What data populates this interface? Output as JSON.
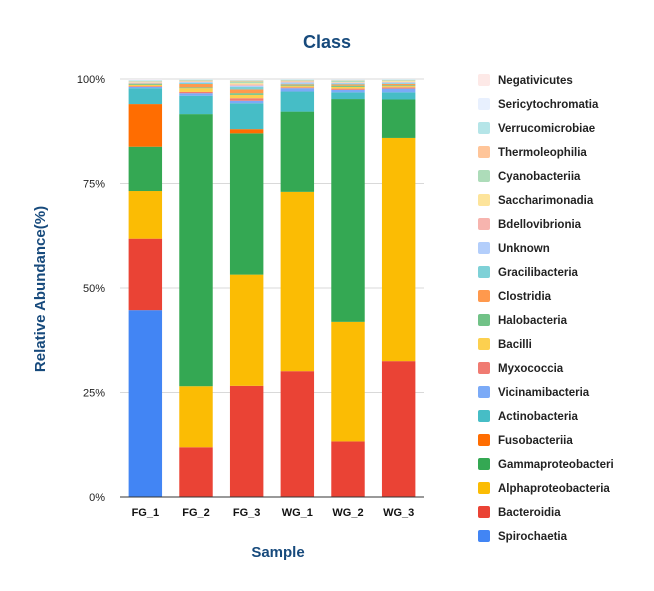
{
  "chart_data": {
    "type": "bar",
    "stacked": true,
    "title": "Class",
    "xlabel": "Sample",
    "ylabel": "Relative Abundance(%)",
    "ylim": [
      0,
      100
    ],
    "yticks": [
      0,
      25,
      50,
      75,
      100
    ],
    "ytick_labels": [
      "0%",
      "25%",
      "50%",
      "75%",
      "100%"
    ],
    "grid": true,
    "legend_position": "right",
    "categories": [
      "FG_1",
      "FG_2",
      "FG_3",
      "WG_1",
      "WG_2",
      "WG_3"
    ],
    "series": [
      {
        "name": "Spirochaetia",
        "color": "#4285f4",
        "values": [
          44.7,
          0,
          0,
          0,
          0,
          0
        ]
      },
      {
        "name": "Bacteroidia",
        "color": "#ea4335",
        "values": [
          17.1,
          11.9,
          26.6,
          30.1,
          13.3,
          32.5
        ]
      },
      {
        "name": "Alphaproteobacteria",
        "color": "#fbbc04",
        "values": [
          11.4,
          14.6,
          26.6,
          42.9,
          28.6,
          53.4
        ]
      },
      {
        "name": "Gammaproteobacteri",
        "color": "#34a853",
        "values": [
          10.6,
          65.1,
          33.8,
          19.2,
          53.3,
          9.2
        ]
      },
      {
        "name": "Fusobacteriia",
        "color": "#ff6d01",
        "values": [
          10.2,
          0,
          1.0,
          0,
          0,
          0
        ]
      },
      {
        "name": "Actinobacteria",
        "color": "#46bdc6",
        "values": [
          3.8,
          4.4,
          6.2,
          4.8,
          1.6,
          1.7
        ]
      },
      {
        "name": "Vicinamibacteria",
        "color": "#7baaf7",
        "values": [
          0.3,
          0.6,
          0.6,
          0.8,
          0.6,
          0.9
        ]
      },
      {
        "name": "Myxococcia",
        "color": "#f07b72",
        "values": [
          0.2,
          0.3,
          0.6,
          0.2,
          0.3,
          0.3
        ]
      },
      {
        "name": "Bacilli",
        "color": "#fcd04f",
        "values": [
          0.3,
          0.9,
          0.8,
          0.3,
          0.4,
          0.3
        ]
      },
      {
        "name": "Halobacteria",
        "color": "#71c287",
        "values": [
          0.2,
          0.2,
          0.4,
          0.2,
          0.3,
          0.2
        ]
      },
      {
        "name": "Clostridia",
        "color": "#ff994d",
        "values": [
          0.1,
          0.8,
          0.9,
          0.2,
          0.3,
          0.3
        ]
      },
      {
        "name": "Gracilibacteria",
        "color": "#7ed1d7",
        "values": [
          0.1,
          0.3,
          0.6,
          0.2,
          0.2,
          0.2
        ]
      },
      {
        "name": "Unknown",
        "color": "#b3cefb",
        "values": [
          0.1,
          0.2,
          0.3,
          0.3,
          0.2,
          0.2
        ]
      },
      {
        "name": "Bdellovibrionia",
        "color": "#f7b4ae",
        "values": [
          0.1,
          0.1,
          0.3,
          0.2,
          0.1,
          0.1
        ]
      },
      {
        "name": "Saccharimonadia",
        "color": "#fde49b",
        "values": [
          0.1,
          0.1,
          0.3,
          0.1,
          0.1,
          0.2
        ]
      },
      {
        "name": "Cyanobacteriia",
        "color": "#addcb9",
        "values": [
          0.1,
          0.2,
          0.4,
          0.2,
          0.3,
          0.2
        ]
      },
      {
        "name": "Thermoleophilia",
        "color": "#ffc599",
        "values": [
          0.1,
          0.1,
          0.2,
          0.1,
          0.1,
          0.1
        ]
      },
      {
        "name": "Verrucomicrobiae",
        "color": "#b5e5e8",
        "values": [
          0.2,
          0.1,
          0.2,
          0.1,
          0.1,
          0.1
        ]
      },
      {
        "name": "Sericytochromatia",
        "color": "#e8f0fe",
        "values": [
          0.2,
          0.1,
          0.1,
          0.1,
          0.1,
          0.1
        ]
      },
      {
        "name": "Negativicutes",
        "color": "#fde9e7",
        "values": [
          0.1,
          0.0,
          0.1,
          0.0,
          0.0,
          0.0
        ]
      }
    ]
  }
}
